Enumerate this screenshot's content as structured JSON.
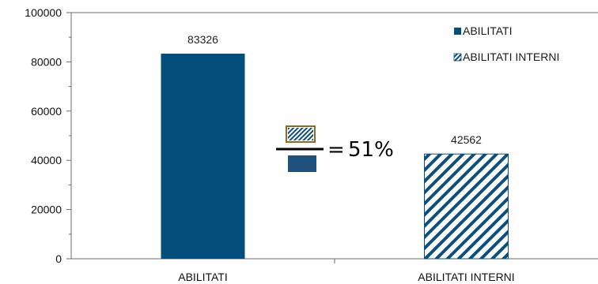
{
  "chart_data": {
    "type": "bar",
    "categories": [
      "ABILITATI",
      "ABILITATI INTERNI"
    ],
    "values": [
      83326,
      42562
    ],
    "data_labels": [
      "83326",
      "42562"
    ],
    "ylim": [
      0,
      100000
    ],
    "yticks": [
      "0",
      "20000",
      "40000",
      "60000",
      "80000",
      "100000"
    ],
    "grid": false,
    "legend_position": "top-right",
    "legend": [
      {
        "label": "ABILITATI",
        "style": "solid"
      },
      {
        "label": "ABILITATI INTERNI",
        "style": "hatched"
      }
    ],
    "colors": {
      "bar": "#034e7b",
      "hatch": "#0d4f7c",
      "frame": "#6d6d6d"
    },
    "annotation": {
      "equals": "=",
      "value": "51%"
    }
  }
}
